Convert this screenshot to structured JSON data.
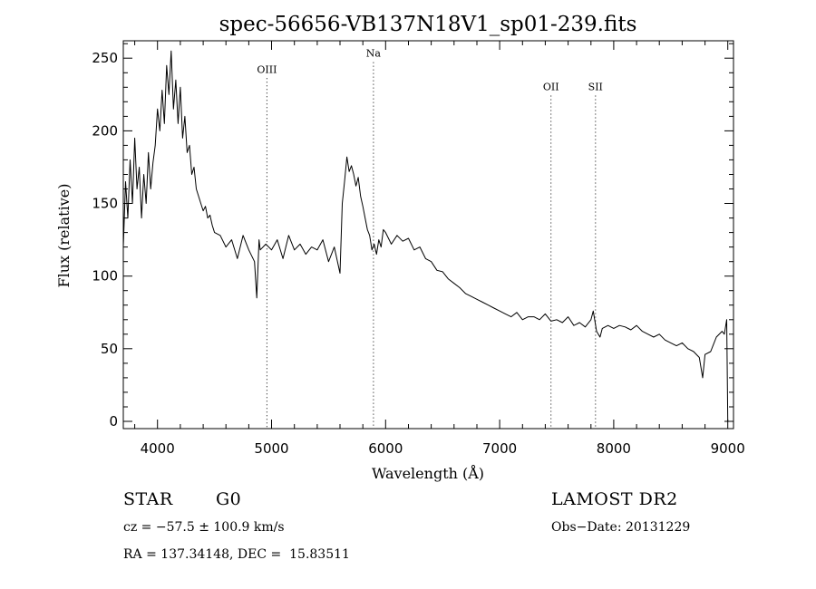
{
  "chart_data": {
    "type": "line",
    "title": "spec-56656-VB137N18V1_sp01-239.fits",
    "xlabel": "Wavelength (Å)",
    "ylabel": "Flux (relative)",
    "xlim": [
      3700,
      9050
    ],
    "ylim": [
      -5,
      262
    ],
    "x_ticks": [
      4000,
      5000,
      6000,
      7000,
      8000,
      9000
    ],
    "y_ticks": [
      0,
      50,
      100,
      150,
      200,
      250
    ],
    "grid": false,
    "line_color": "#000000",
    "emission_lines": [
      {
        "label": "OIII",
        "wavelength": 4959,
        "label_flux": 240
      },
      {
        "label": "Na",
        "wavelength": 5893,
        "label_flux": 251
      },
      {
        "label": "OII",
        "wavelength": 7450,
        "label_flux": 228
      },
      {
        "label": "SII",
        "wavelength": 7840,
        "label_flux": 228
      }
    ],
    "series": [
      {
        "x": [
          3700,
          3720,
          3740,
          3760,
          3780,
          3800,
          3820,
          3840,
          3860,
          3880,
          3900,
          3920,
          3940,
          3960,
          3980,
          4000,
          4020,
          4040,
          4060,
          4080,
          4100,
          4120,
          4140,
          4160,
          4180,
          4200,
          4220,
          4240,
          4260,
          4280,
          4300,
          4320,
          4340,
          4360,
          4380,
          4400,
          4420,
          4440,
          4460,
          4480,
          4500,
          4550,
          4600,
          4650,
          4700,
          4750,
          4800,
          4850,
          4870,
          4890,
          4900,
          4950,
          5000,
          5050,
          5100,
          5150,
          5200,
          5250,
          5300,
          5350,
          5400,
          5450,
          5500,
          5550,
          5600,
          5620,
          5640,
          5660,
          5680,
          5700,
          5720,
          5740,
          5760,
          5780,
          5800,
          5820,
          5840,
          5860,
          5880,
          5900,
          5920,
          5940,
          5960,
          5980,
          6000,
          6050,
          6100,
          6150,
          6200,
          6250,
          6300,
          6350,
          6400,
          6450,
          6500,
          6550,
          6600,
          6650,
          6700,
          6750,
          6800,
          6850,
          6900,
          6950,
          7000,
          7050,
          7100,
          7150,
          7200,
          7250,
          7300,
          7350,
          7400,
          7450,
          7500,
          7550,
          7600,
          7650,
          7700,
          7750,
          7800,
          7820,
          7850,
          7880,
          7900,
          7950,
          8000,
          8050,
          8100,
          8150,
          8200,
          8250,
          8300,
          8350,
          8400,
          8450,
          8500,
          8550,
          8600,
          8650,
          8700,
          8750,
          8780,
          8800,
          8850,
          8900,
          8950,
          8970,
          8990,
          9000
        ],
        "y": [
          120,
          165,
          140,
          180,
          150,
          195,
          160,
          175,
          140,
          170,
          150,
          185,
          160,
          178,
          190,
          215,
          200,
          228,
          205,
          245,
          225,
          255,
          215,
          235,
          205,
          230,
          195,
          210,
          185,
          190,
          170,
          175,
          160,
          155,
          150,
          145,
          148,
          140,
          142,
          135,
          130,
          128,
          120,
          125,
          112,
          128,
          118,
          110,
          85,
          125,
          118,
          122,
          118,
          125,
          112,
          128,
          118,
          122,
          115,
          120,
          118,
          125,
          110,
          120,
          102,
          150,
          165,
          182,
          172,
          176,
          170,
          162,
          168,
          155,
          148,
          140,
          132,
          128,
          118,
          122,
          115,
          125,
          120,
          132,
          130,
          122,
          128,
          124,
          126,
          118,
          120,
          112,
          110,
          104,
          103,
          98,
          95,
          92,
          88,
          86,
          84,
          82,
          80,
          78,
          76,
          74,
          72,
          75,
          70,
          72,
          72,
          70,
          74,
          69,
          70,
          68,
          72,
          66,
          68,
          65,
          70,
          76,
          62,
          58,
          64,
          66,
          64,
          66,
          65,
          63,
          66,
          62,
          60,
          58,
          60,
          56,
          54,
          52,
          54,
          50,
          48,
          44,
          30,
          46,
          48,
          58,
          62,
          60,
          70,
          0
        ]
      }
    ]
  },
  "info": {
    "class_label": "STAR",
    "subclass": "G0",
    "survey": "LAMOST DR2",
    "redshift": "cz = −57.5 ± 100.9 km/s",
    "obs_date": "Obs−Date: 20131229",
    "coords": "RA = 137.34148, DEC =  15.83511"
  }
}
